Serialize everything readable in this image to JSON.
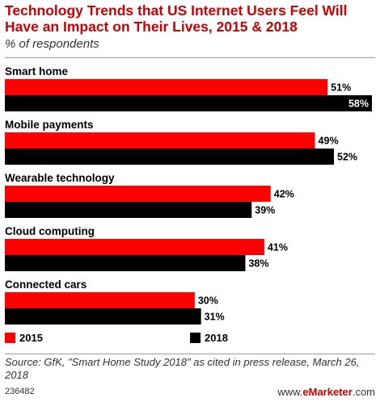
{
  "header": {
    "title": "Technology Trends that US Internet Users Feel Will Have an Impact on Their Lives, 2015 & 2018",
    "subtitle": "% of respondents"
  },
  "footer": {
    "source": "Source: GfK, \"Smart Home Study 2018\" as cited in press release, March 26, 2018",
    "chart_id": "236482",
    "brand_prefix": "www.",
    "brand_name": "eMarketer",
    "brand_suffix": ".com"
  },
  "legend": [
    {
      "name": "2015",
      "color": "#ff0000"
    },
    {
      "name": "2018",
      "color": "#000000"
    }
  ],
  "chart_data": {
    "type": "bar",
    "orientation": "horizontal",
    "title": "Technology Trends that US Internet Users Feel Will Have an Impact on Their Lives, 2015 & 2018",
    "subtitle": "% of respondents",
    "categories": [
      "Smart home",
      "Mobile payments",
      "Wearable technology",
      "Cloud computing",
      "Connected cars"
    ],
    "series": [
      {
        "name": "2015",
        "color": "#ff0000",
        "values": [
          51,
          49,
          42,
          41,
          30
        ]
      },
      {
        "name": "2018",
        "color": "#000000",
        "values": [
          58,
          52,
          39,
          38,
          31
        ]
      }
    ],
    "value_suffix": "%",
    "xlim": [
      0,
      58
    ],
    "legend_position": "bottom-left",
    "grid": false
  }
}
